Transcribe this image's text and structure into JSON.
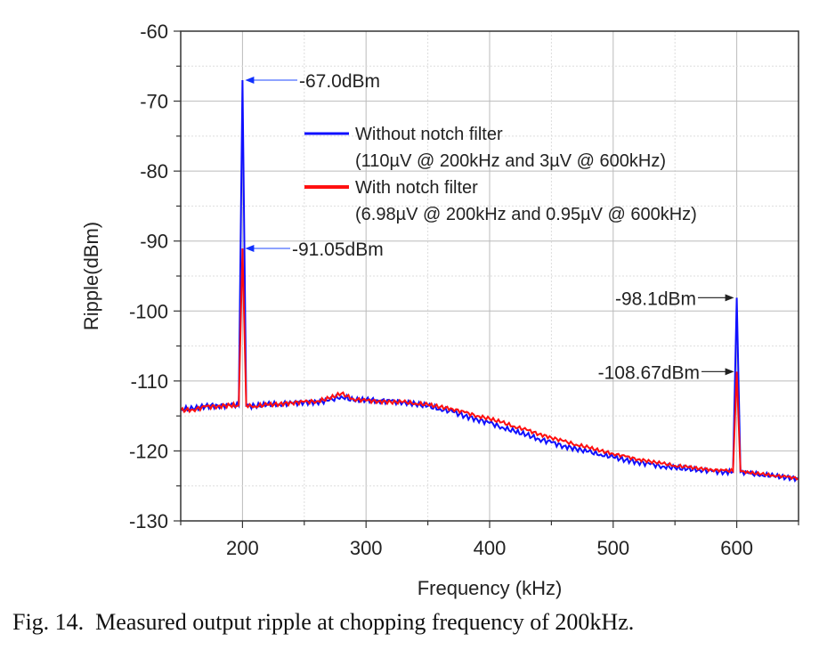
{
  "chart_data": {
    "type": "line",
    "xlabel": "Frequency (kHz)",
    "ylabel": "Ripple(dBm)",
    "xlim": [
      150,
      650
    ],
    "ylim": [
      -130,
      -60
    ],
    "xticks": [
      200,
      300,
      400,
      500,
      600
    ],
    "yticks": [
      -60,
      -70,
      -80,
      -90,
      -100,
      -110,
      -120,
      -130
    ],
    "grid": true,
    "legend_placement": "top-center",
    "x": [
      150,
      160,
      170,
      180,
      190,
      197,
      200,
      203,
      210,
      220,
      230,
      240,
      250,
      260,
      270,
      280,
      290,
      300,
      310,
      320,
      330,
      340,
      350,
      360,
      370,
      380,
      390,
      400,
      410,
      420,
      430,
      440,
      450,
      460,
      470,
      480,
      490,
      500,
      510,
      520,
      530,
      540,
      550,
      560,
      570,
      580,
      590,
      597,
      600,
      603,
      610,
      620,
      630,
      640,
      650
    ],
    "series": [
      {
        "name": "Without notch filter",
        "sub": "(110µV @ 200kHz and 3µV @ 600kHz)",
        "color": "#1010ff",
        "values": [
          -114,
          -114,
          -113.6,
          -113.5,
          -113.5,
          -113.5,
          -67,
          -113.5,
          -113.6,
          -113.4,
          -113.3,
          -113.2,
          -113,
          -113,
          -112.8,
          -112.2,
          -112.8,
          -112.7,
          -112.8,
          -112.9,
          -113,
          -113.3,
          -113.6,
          -114,
          -114.4,
          -115,
          -115.5,
          -116,
          -116.6,
          -117.2,
          -117.7,
          -118.3,
          -118.8,
          -119.3,
          -119.7,
          -120.1,
          -120.5,
          -120.9,
          -121.3,
          -121.6,
          -121.9,
          -122.2,
          -122.4,
          -122.6,
          -122.7,
          -122.9,
          -123,
          -123,
          -98.1,
          -123,
          -123.2,
          -123.4,
          -123.6,
          -123.8,
          -124
        ]
      },
      {
        "name": "With notch filter",
        "sub": "(6.98µV @ 200kHz and 0.95µV @ 600kHz)",
        "color": "#ff1010",
        "values": [
          -114.2,
          -114.1,
          -113.7,
          -113.6,
          -113.5,
          -113.5,
          -91.05,
          -113.5,
          -113.6,
          -113.4,
          -113.3,
          -113.1,
          -113,
          -112.9,
          -112.5,
          -111.8,
          -112.6,
          -112.8,
          -112.9,
          -113,
          -113,
          -113.2,
          -113.4,
          -113.7,
          -114,
          -114.5,
          -115,
          -115.4,
          -115.9,
          -116.5,
          -117,
          -117.6,
          -118.1,
          -118.6,
          -119.1,
          -119.5,
          -120,
          -120.4,
          -120.8,
          -121.2,
          -121.5,
          -121.8,
          -122.1,
          -122.3,
          -122.5,
          -122.7,
          -122.8,
          -122.9,
          -108.67,
          -122.9,
          -123.1,
          -123.3,
          -123.5,
          -123.7,
          -123.9
        ]
      }
    ],
    "annotations": [
      {
        "text": "-67.0dBm",
        "x": 200,
        "y": -67.0
      },
      {
        "text": "-91.05dBm",
        "x": 200,
        "y": -91.05
      },
      {
        "text": "-98.1dBm",
        "x": 600,
        "y": -98.1
      },
      {
        "text": "-108.67dBm",
        "x": 600,
        "y": -108.67
      }
    ]
  },
  "caption": "Fig. 14.  Measured output ripple at chopping frequency of 200kHz."
}
